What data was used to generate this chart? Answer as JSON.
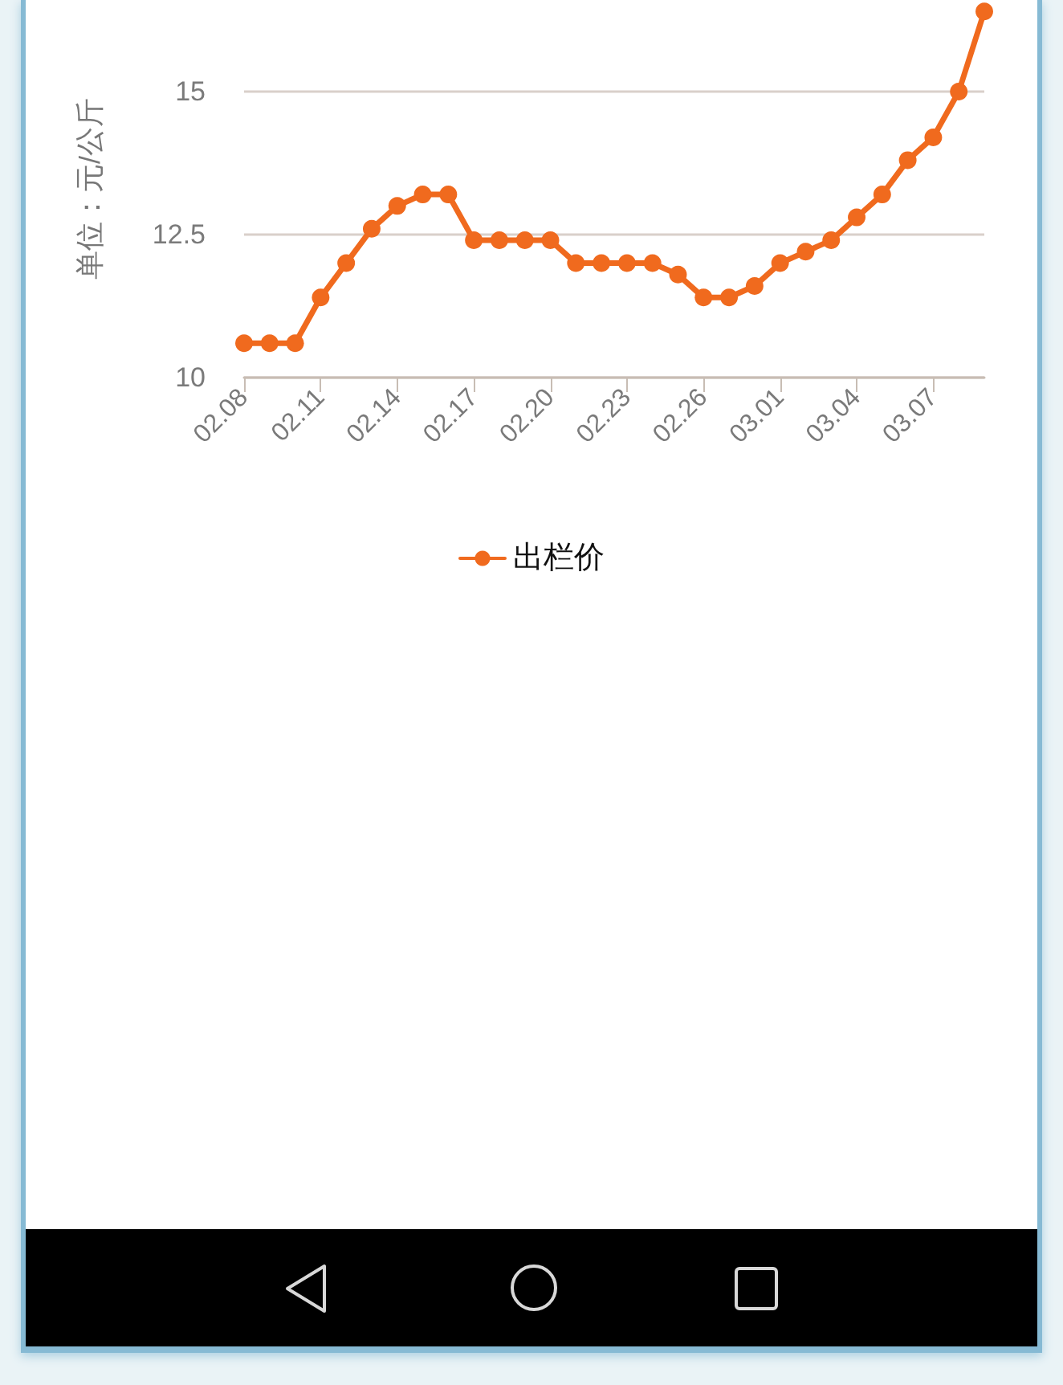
{
  "chart_data": {
    "type": "line",
    "ylabel": "单位：元/公斤",
    "categories": [
      "02.08",
      null,
      null,
      "02.11",
      null,
      null,
      "02.14",
      null,
      null,
      "02.17",
      null,
      null,
      "02.20",
      null,
      null,
      "02.23",
      null,
      null,
      "02.26",
      null,
      null,
      "03.01",
      null,
      null,
      "03.04",
      null,
      null,
      "03.07",
      null,
      null
    ],
    "series": [
      {
        "name": "出栏价",
        "color": "#f06a1e",
        "values": [
          10.6,
          10.6,
          10.6,
          11.4,
          12.0,
          12.6,
          13.0,
          13.2,
          13.2,
          12.4,
          12.4,
          12.4,
          12.4,
          12.0,
          12.0,
          12.0,
          12.0,
          11.8,
          11.4,
          11.4,
          11.6,
          12.0,
          12.2,
          12.4,
          12.8,
          13.2,
          13.8,
          14.2,
          15.0,
          16.4
        ]
      }
    ],
    "ylim": [
      10,
      16.6
    ],
    "yticks": [
      10,
      12.5,
      15
    ],
    "grid": "y",
    "legend": "bottom",
    "marker": "circle",
    "line_style": "solid"
  }
}
